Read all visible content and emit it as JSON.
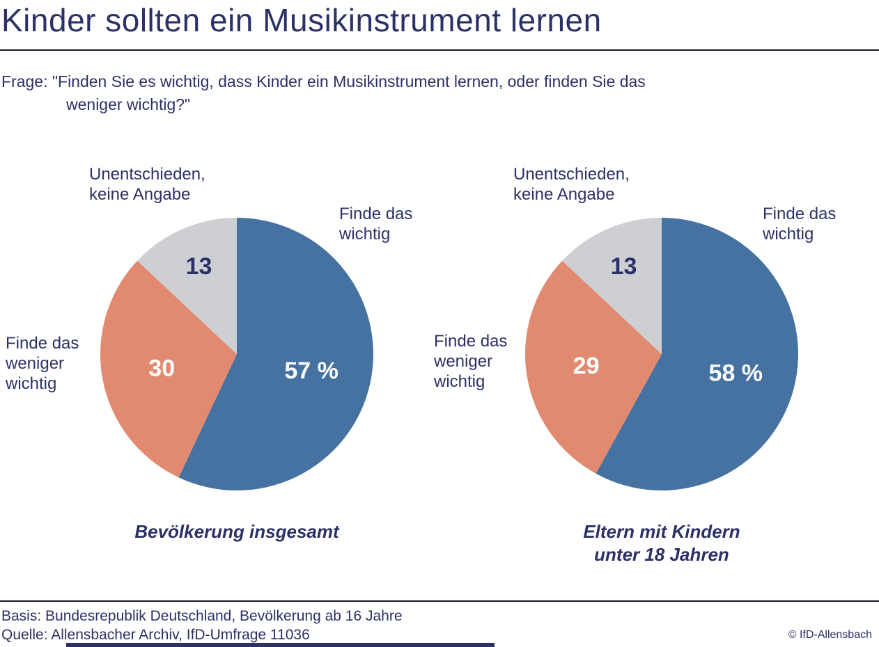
{
  "header": {
    "title": "Kinder sollten ein Musikinstrument lernen",
    "question_line1": "Frage: \"Finden Sie es wichtig, dass Kinder ein Musikinstrument lernen, oder finden Sie das",
    "question_line2": "weniger wichtig?\""
  },
  "colors": {
    "navy_text": "#2b3166",
    "slice_blue": "#4572a1",
    "slice_salmon": "#e18a6f",
    "slice_gray": "#cdcfd2",
    "divider": "#1c1c30",
    "value_label_white": "#ffffff"
  },
  "chart_data": [
    {
      "type": "pie",
      "title": "Bevölkerung insgesamt",
      "start_angle": "12-oclock",
      "direction": "clockwise",
      "legend_position": "outside-labels",
      "slices": [
        {
          "label": "Finde das wichtig",
          "value": 57,
          "value_label": "57 %",
          "color": "#4572a1",
          "value_label_color": "#ffffff"
        },
        {
          "label": "Finde das weniger wichtig",
          "value": 30,
          "value_label": "30",
          "color": "#e18a6f",
          "value_label_color": "#ffffff"
        },
        {
          "label": "Unentschieden, keine Angabe",
          "value": 13,
          "value_label": "13",
          "color": "#cdcfd2",
          "value_label_color": "#2b3166"
        }
      ]
    },
    {
      "type": "pie",
      "title": "Eltern mit Kindern unter 18 Jahren",
      "start_angle": "12-oclock",
      "direction": "clockwise",
      "legend_position": "outside-labels",
      "slices": [
        {
          "label": "Finde das wichtig",
          "value": 58,
          "value_label": "58 %",
          "color": "#4572a1",
          "value_label_color": "#ffffff"
        },
        {
          "label": "Finde das weniger wichtig",
          "value": 29,
          "value_label": "29",
          "color": "#e18a6f",
          "value_label_color": "#ffffff"
        },
        {
          "label": "Unentschieden, keine Angabe",
          "value": 13,
          "value_label": "13",
          "color": "#cdcfd2",
          "value_label_color": "#2b3166"
        }
      ]
    }
  ],
  "footer": {
    "basis": "Basis: Bundesrepublik Deutschland, Bevölkerung ab 16 Jahre",
    "quelle": "Quelle: Allensbacher Archiv, IfD-Umfrage 11036",
    "copyright": "© IfD-Allensbach"
  }
}
